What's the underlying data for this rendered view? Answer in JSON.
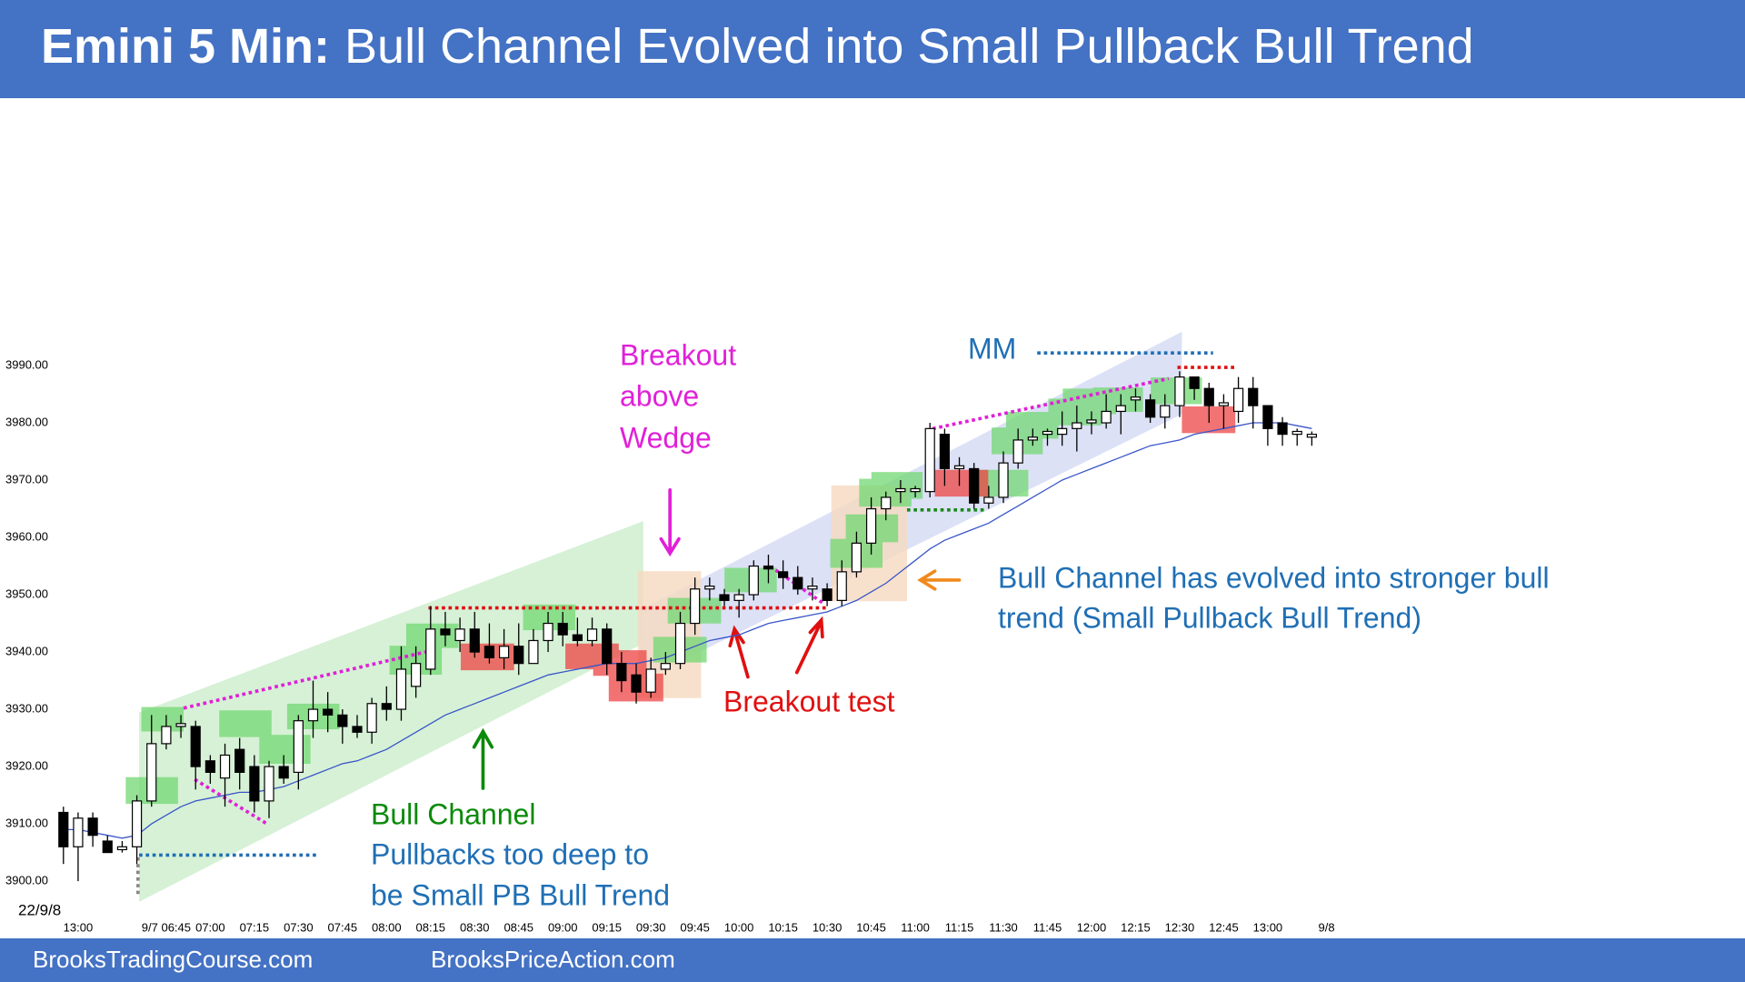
{
  "chart_data": {
    "type": "candlestick",
    "title_prefix": "Emini 5 Min:",
    "title": "Bull Channel Evolved into Small Pullback Bull Trend",
    "date_label": "22/9/8",
    "footer_left": "BrooksTradingCourse.com",
    "footer_right": "BrooksPriceAction.com",
    "categories": [
      null,
      "13:00",
      null,
      null,
      null,
      null,
      null,
      "9/7 06:45",
      null,
      null,
      "07:00",
      null,
      null,
      "07:15",
      null,
      null,
      "07:30",
      null,
      null,
      "07:45",
      null,
      null,
      "08:00",
      null,
      null,
      "08:15",
      null,
      null,
      "08:30",
      null,
      null,
      "08:45",
      null,
      null,
      "09:00",
      null,
      null,
      "09:15",
      null,
      null,
      "09:30",
      null,
      null,
      "09:45",
      null,
      null,
      "10:00",
      null,
      null,
      "10:15",
      null,
      null,
      "10:30",
      null,
      null,
      "10:45",
      null,
      null,
      "11:00",
      null,
      null,
      "11:15",
      null,
      null,
      "11:30",
      null,
      null,
      "11:45",
      null,
      null,
      "12:00",
      null,
      null,
      "12:15",
      null,
      null,
      "12:30",
      null,
      null,
      "12:45",
      null,
      null,
      "13:00",
      null,
      null,
      null,
      "9/8"
    ],
    "open": [
      3912,
      3906,
      3911,
      3907,
      3905.5,
      3906,
      3914,
      3924,
      3927,
      3927,
      3921,
      3918,
      3923,
      3920,
      3914,
      3920,
      3919,
      3928,
      3930,
      3929,
      3927,
      3926,
      3931,
      3930,
      3934,
      3937,
      3944,
      3942,
      3944,
      3941,
      3939,
      3941,
      3938,
      3942,
      3945,
      3943,
      3942,
      3944,
      3938,
      3936,
      3933,
      3937,
      3938,
      3945,
      3951,
      3950,
      3949,
      3950,
      3955,
      3954,
      3953,
      3951,
      3951,
      3949,
      3954,
      3959,
      3965,
      3968,
      3968,
      3968,
      3978,
      3972,
      3972,
      3966,
      3967,
      3973,
      3977,
      3978,
      3978,
      3979,
      3980,
      3980,
      3982,
      3984,
      3984,
      3981,
      3983,
      3988,
      3986,
      3983,
      3982,
      3986,
      3983,
      3980,
      3978,
      3977.5,
      null
    ],
    "high": [
      3913,
      3912,
      3912,
      3908,
      3907,
      3915,
      3929,
      3929,
      3929,
      3928,
      3922,
      3924,
      3925,
      3922,
      3921,
      3922,
      3929,
      3935,
      3933,
      3930,
      3929,
      3932,
      3934,
      3941,
      3941,
      3948,
      3947,
      3946,
      3947,
      3945,
      3944,
      3945,
      3944,
      3947,
      3947,
      3946,
      3946,
      3945,
      3940,
      3938,
      3939,
      3940,
      3947,
      3953,
      3953,
      3951,
      3951,
      3956,
      3957,
      3956,
      3955,
      3953,
      3952,
      3956,
      3961,
      3967,
      3968,
      3970,
      3969,
      3980,
      3979,
      3974,
      3973,
      3969,
      3975,
      3979,
      3979,
      3979,
      3982,
      3983,
      3982,
      3985,
      3985,
      3986,
      3985,
      3985,
      3989,
      3988,
      3987,
      3985,
      3988,
      3988,
      3983,
      3981,
      3979,
      3978.5,
      null
    ],
    "low": [
      3903,
      3900,
      3906,
      3905,
      3905,
      3903,
      3913,
      3923,
      3925,
      3916,
      3917,
      3913,
      3916,
      3912,
      3911,
      3917,
      3916,
      3925,
      3926,
      3924,
      3925,
      3924,
      3928,
      3928,
      3932,
      3936,
      3941,
      3940,
      3939,
      3938,
      3937,
      3936,
      3938,
      3940,
      3941,
      3941,
      3941,
      3936,
      3933,
      3931,
      3932,
      3936,
      3937,
      3943,
      3949,
      3948,
      3946,
      3949,
      3952,
      3951,
      3950,
      3949,
      3948,
      3948,
      3953,
      3957,
      3963,
      3966,
      3967,
      3967,
      3969,
      3969,
      3965,
      3965,
      3966,
      3972,
      3976,
      3976,
      3976,
      3975,
      3978,
      3979,
      3978,
      3982,
      3980,
      3979,
      3981,
      3984,
      3980,
      3979,
      3980,
      3979,
      3976,
      3976,
      3976,
      3976,
      null
    ],
    "close": [
      3906,
      3911,
      3908,
      3905,
      3906,
      3914,
      3924,
      3927,
      3927.5,
      3920,
      3919,
      3922,
      3919,
      3914,
      3920,
      3918,
      3928,
      3930,
      3929,
      3927,
      3926,
      3931,
      3930,
      3937,
      3938,
      3944,
      3943,
      3944,
      3940,
      3939,
      3941,
      3938,
      3942,
      3945,
      3943,
      3942,
      3944,
      3938,
      3935,
      3933,
      3937,
      3938,
      3945,
      3951,
      3951.5,
      3949,
      3950,
      3955,
      3954.5,
      3953,
      3951,
      3951.5,
      3949,
      3954,
      3959,
      3965,
      3967,
      3968.5,
      3968.5,
      3979,
      3972,
      3972.5,
      3966,
      3967,
      3973,
      3977,
      3977.5,
      3978.5,
      3979,
      3980,
      3980.5,
      3982,
      3983,
      3984.5,
      3981,
      3983,
      3988,
      3986,
      3983,
      3983.5,
      3986,
      3983,
      3979,
      3978,
      3978.5,
      3978,
      null
    ],
    "ma_values": [
      3909,
      3909,
      3908.5,
      3908,
      3907.5,
      3908,
      3910,
      3911.5,
      3913,
      3914,
      3914.5,
      3915,
      3915.5,
      3915.5,
      3916,
      3916.5,
      3917.5,
      3918.5,
      3919.5,
      3920.5,
      3921,
      3922,
      3923,
      3924.5,
      3926,
      3927.5,
      3929,
      3930,
      3931,
      3932,
      3933,
      3934,
      3935,
      3936,
      3936.5,
      3937,
      3937.5,
      3938,
      3938,
      3938,
      3938.5,
      3939,
      3940,
      3941,
      3942,
      3942.5,
      3943,
      3944,
      3945,
      3945.5,
      3946,
      3946.5,
      3947,
      3948,
      3949,
      3950.5,
      3952,
      3954,
      3956,
      3958,
      3959.5,
      3960.5,
      3961.5,
      3962.5,
      3964,
      3965.5,
      3967,
      3968.5,
      3970,
      3971,
      3972,
      3973,
      3974,
      3975,
      3976,
      3976.5,
      3977,
      3978,
      3978.5,
      3979,
      3979.5,
      3980,
      3980,
      3980,
      3979.5,
      3979,
      null
    ],
    "bull_color": "#ffffff",
    "bear_color": "#000000",
    "ma_color": "#3a56c8",
    "ylim": [
      3897,
      4030
    ],
    "yticks": [
      {
        "value": 3900,
        "label": "3900.00"
      },
      {
        "value": 3910,
        "label": "3910.00"
      },
      {
        "value": 3920,
        "label": "3920.00"
      },
      {
        "value": 3930,
        "label": "3930.00"
      },
      {
        "value": 3940,
        "label": "3940.00"
      },
      {
        "value": 3950,
        "label": "3950.00"
      },
      {
        "value": 3960,
        "label": "3960.00"
      },
      {
        "value": 3970,
        "label": "3970.00"
      },
      {
        "value": 3980,
        "label": "3980.00"
      },
      {
        "value": 3990,
        "label": "3990.00"
      }
    ],
    "grid": false,
    "annotations": [
      {
        "text": "Breakout",
        "color": "#e020d8"
      },
      {
        "text": "above",
        "color": "#e020d8"
      },
      {
        "text": "Wedge",
        "color": "#e020d8"
      },
      {
        "text": "MM",
        "color": "#1f6fb5"
      },
      {
        "text": "Bull Channel has evolved into stronger bull",
        "color": "#1f6fb5"
      },
      {
        "text": "trend (Small Pullback Bull Trend)",
        "color": "#1f6fb5"
      },
      {
        "text": "Breakout test",
        "color": "#e01010"
      },
      {
        "text": "Bull Channel",
        "color": "#0a8a0a"
      },
      {
        "text": "Pullbacks too deep to",
        "color": "#1f6fb5"
      },
      {
        "text": "be Small PB Bull Trend",
        "color": "#1f6fb5"
      }
    ]
  }
}
